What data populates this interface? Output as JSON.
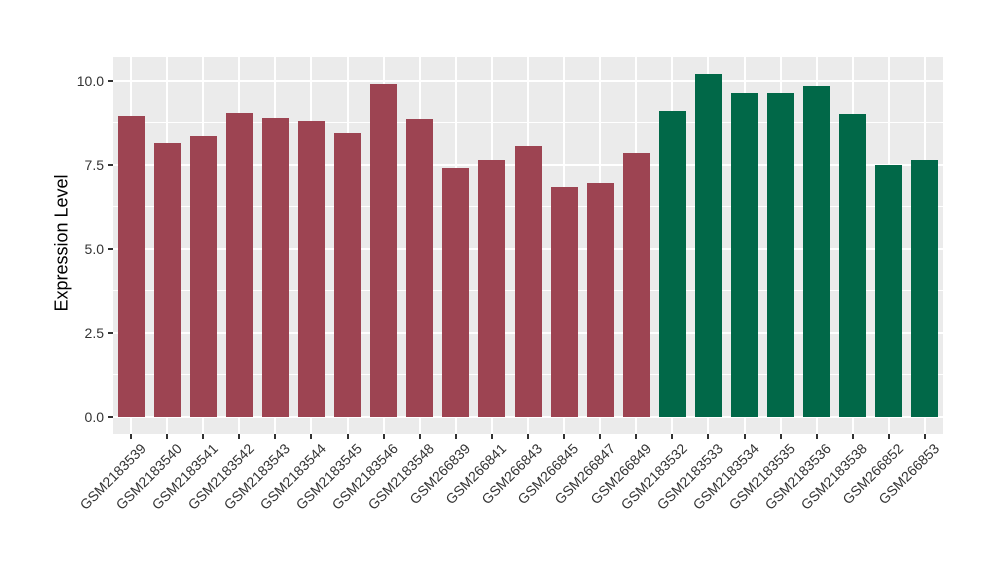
{
  "chart_data": {
    "type": "bar",
    "title": "",
    "xlabel": "",
    "ylabel": "Expression Level",
    "ylim": [
      -0.51,
      10.71
    ],
    "yticks": [
      0,
      2.5,
      5,
      7.5,
      10
    ],
    "ytick_labels": [
      "0.0",
      "2.5",
      "5.0",
      "7.5",
      "10.0"
    ],
    "yminor": [
      1.25,
      3.75,
      6.25,
      8.75
    ],
    "grid": true,
    "legend_position": "none",
    "categories": [
      "GSM2183539",
      "GSM2183540",
      "GSM2183541",
      "GSM2183542",
      "GSM2183543",
      "GSM2183544",
      "GSM2183545",
      "GSM2183546",
      "GSM2183548",
      "GSM266839",
      "GSM266841",
      "GSM266843",
      "GSM266845",
      "GSM266847",
      "GSM266849",
      "GSM2183532",
      "GSM2183533",
      "GSM2183534",
      "GSM2183535",
      "GSM2183536",
      "GSM2183538",
      "GSM266852",
      "GSM266853"
    ],
    "values": [
      8.95,
      8.15,
      8.35,
      9.05,
      8.9,
      8.8,
      8.45,
      9.9,
      8.85,
      7.4,
      7.65,
      8.05,
      6.85,
      6.95,
      7.85,
      9.1,
      10.2,
      9.65,
      9.65,
      9.85,
      9.0,
      7.5,
      7.65
    ],
    "bar_groups": [
      "group1",
      "group1",
      "group1",
      "group1",
      "group1",
      "group1",
      "group1",
      "group1",
      "group1",
      "group1",
      "group1",
      "group1",
      "group1",
      "group1",
      "group1",
      "group2",
      "group2",
      "group2",
      "group2",
      "group2",
      "group2",
      "group2",
      "group2"
    ],
    "group_colors": {
      "group1": "#9D4452",
      "group2": "#016848"
    },
    "panel_background": "#EBEBEB",
    "gridline_color": "#FFFFFF",
    "axis_text_color": "#333333"
  }
}
